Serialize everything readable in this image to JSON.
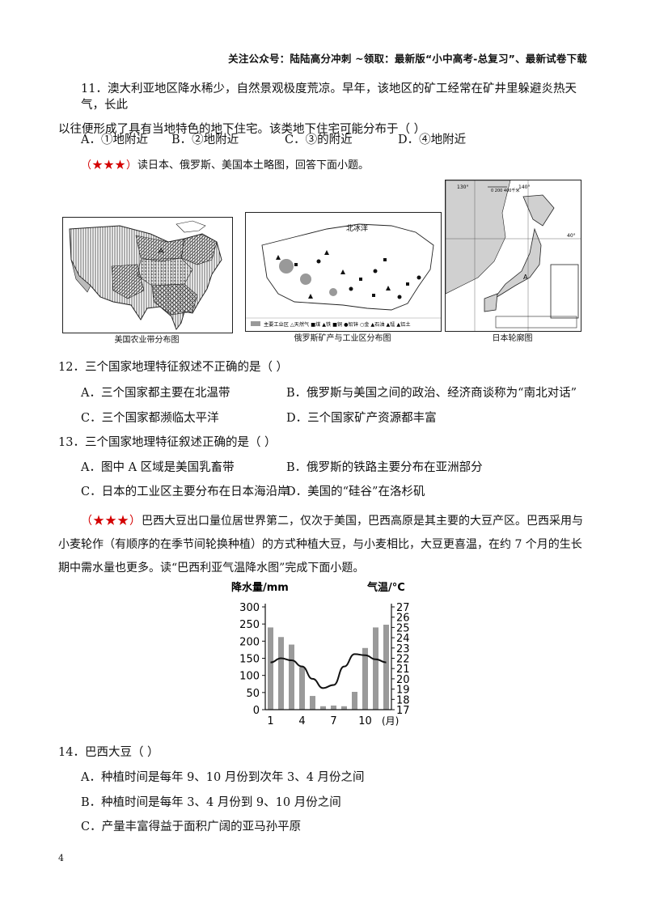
{
  "header": "关注公众号：陆陆高分冲刺   ~领取：最新版“小中高考-总复习”、最新试卷下载",
  "q11": {
    "line1": "11．澳大利亚地区降水稀少，自然景观极度荒凉。早年，该地区的矿工经常在矿井里躲避炎热天气，长此",
    "line2": "以往便形成了具有当地特色的地下住宅。该类地下住宅可能分布于（    ）",
    "options": [
      "A．①地附近",
      "B．②地附近",
      "C．③的附近",
      "D．④地附近"
    ]
  },
  "intro1": {
    "stars": "（★★★）",
    "text": "读日本、俄罗斯、美国本土略图，回答下面小题。"
  },
  "maps": {
    "usa_caption": "美国农业带分布图",
    "usa_label_a": "A",
    "russia_caption": "俄罗斯矿产与工业区分布图",
    "russia_sea": "北冰洋",
    "russia_legend": "主要工业区  △天然气 ■煤 ▲铁 ■铜 ●铅锌 ○金 ▲石油 ▲锰 ▲铝土",
    "japan_caption": "日本轮廓图",
    "japan_scale": "0   200  400千米",
    "japan_label_a": "A",
    "japan_lon_130": "130°",
    "japan_lon_140": "140°",
    "japan_lat_40": "40°"
  },
  "q12": {
    "stem": "12．三个国家地理特征叙述不正确的是（    ）",
    "options": [
      "A．三个国家都主要在北温带",
      "B．俄罗斯与美国之间的政治、经济商谈称为“南北对话”",
      "C．三个国家都濒临太平洋",
      "D．三个国家矿产资源都丰富"
    ]
  },
  "q13": {
    "stem": "13．三个国家地理特征叙述正确的是（    ）",
    "options": [
      "A．图中 A 区域是美国乳畜带",
      "B．俄罗斯的铁路主要分布在亚洲部分",
      "C．日本的工业区主要分布在日本海沿岸",
      "D．美国的“硅谷”在洛杉矶"
    ]
  },
  "intro2": {
    "stars": "（★★★）",
    "line1": "巴西大豆出口量位居世界第二，仅次于美国，巴西高原是其主要的大豆产区。巴西采用与",
    "line2": "小麦轮作（有顺序的在季节间轮换种植）的方式种植大豆，与小麦相比，大豆更喜温，在约 7 个月的生长",
    "line3": "期中需水量也更多。读“巴西利亚气温降水图”完成下面小题。"
  },
  "chart_data": {
    "type": "bar",
    "title": "",
    "ylabel": "降水量/mm",
    "y2label": "气温/°C",
    "xlabel_unit": "(月)",
    "x_tick_labels": [
      "1",
      "4",
      "7",
      "10"
    ],
    "categories": [
      1,
      2,
      3,
      4,
      5,
      6,
      7,
      8,
      9,
      10,
      11,
      12
    ],
    "precip": [
      240,
      212,
      190,
      124,
      40,
      10,
      12,
      10,
      52,
      180,
      240,
      248
    ],
    "temp": [
      21.6,
      22.0,
      21.8,
      21.2,
      20.0,
      19.1,
      19.4,
      21.2,
      22.4,
      22.3,
      21.9,
      21.6
    ],
    "ylim": [
      0,
      300
    ],
    "y_ticks": [
      0,
      50,
      100,
      150,
      200,
      250,
      300
    ],
    "y2lim": [
      17,
      27
    ],
    "y2_ticks": [
      17,
      18,
      19,
      20,
      21,
      22,
      23,
      24,
      25,
      26,
      27
    ]
  },
  "q14": {
    "stem": "14．巴西大豆（    ）",
    "options": [
      "A．种植时间是每年 9、10 月份到次年 3、4 月份之间",
      "B．种植时间是每年 3、4 月份到 9、10 月份之间",
      "C．产量丰富得益于面积广阔的亚马孙平原"
    ]
  },
  "page_number": "4",
  "colors": {
    "star": "#d40000",
    "bar": "#9a9a9a",
    "land": "#d0d0d0"
  }
}
